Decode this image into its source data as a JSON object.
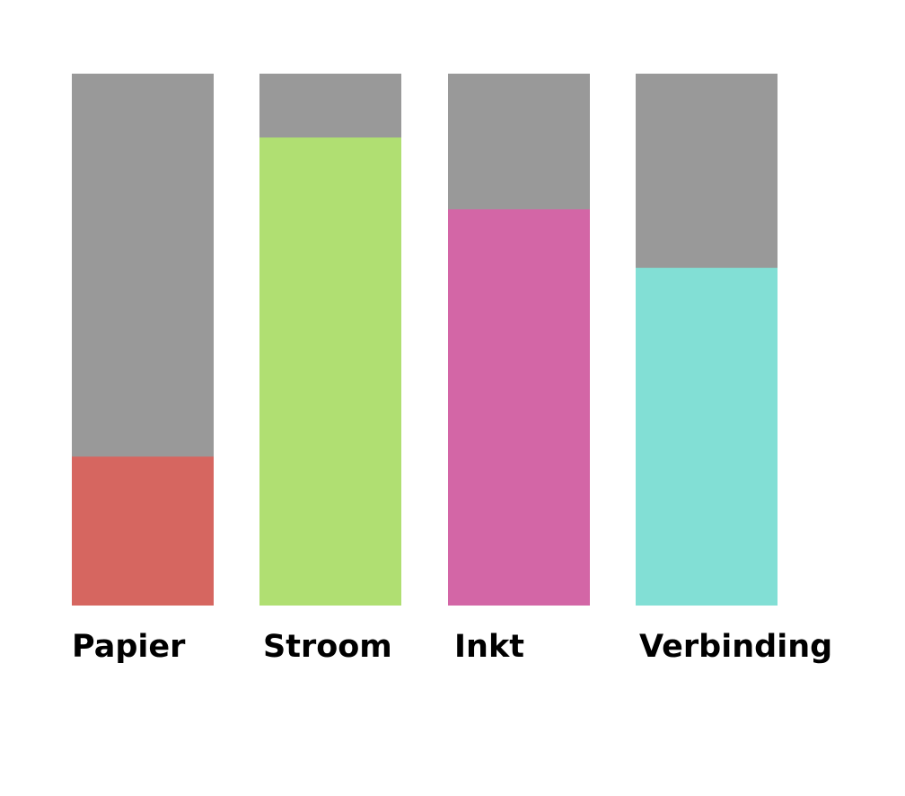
{
  "chart_data": {
    "type": "bar",
    "categories": [
      "Papier",
      "Stroom",
      "Inkt",
      "Verbinding"
    ],
    "values": [
      28,
      88,
      74.5,
      63.5
    ],
    "ylim": [
      0,
      100
    ],
    "grid": false,
    "legend": "none",
    "colors": {
      "background_track": "#999999",
      "bars": [
        "#D66660",
        "#B0DF72",
        "#D366A6",
        "#82DFD5"
      ]
    }
  }
}
